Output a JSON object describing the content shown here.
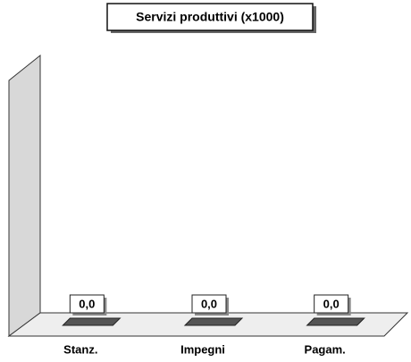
{
  "chart_data": {
    "type": "bar",
    "title": "Servizi produttivi (x1000)",
    "categories": [
      "Stanz.",
      "Impegni",
      "Pagam."
    ],
    "values": [
      0,
      0,
      0
    ],
    "value_labels": [
      "0,0",
      "0,0",
      "0,0"
    ],
    "color": "#555555"
  }
}
